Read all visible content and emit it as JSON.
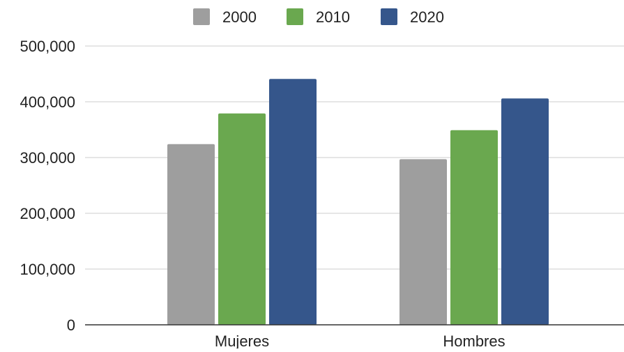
{
  "chart_data": {
    "type": "bar",
    "title": "",
    "xlabel": "",
    "ylabel": "",
    "categories": [
      "Mujeres",
      "Hombres"
    ],
    "series": [
      {
        "name": "2000",
        "color": "#9e9e9e",
        "values": [
          324000,
          297000
        ]
      },
      {
        "name": "2010",
        "color": "#6aa84f",
        "values": [
          379000,
          349000
        ]
      },
      {
        "name": "2020",
        "color": "#35568b",
        "values": [
          441000,
          406000
        ]
      }
    ],
    "ylim": [
      0,
      500000
    ],
    "y_ticks": [
      0,
      100000,
      200000,
      300000,
      400000,
      500000
    ],
    "y_tick_labels": [
      "0",
      "100,000",
      "200,000",
      "300,000",
      "400,000",
      "500,000"
    ],
    "grid": true,
    "legend_position": "top"
  }
}
